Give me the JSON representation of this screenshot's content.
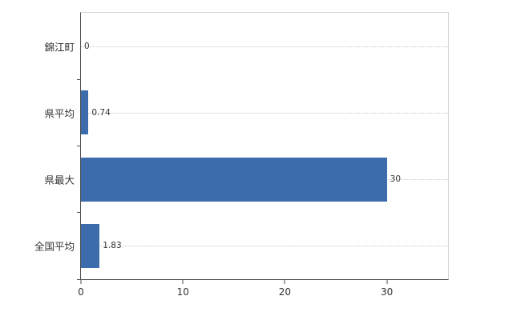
{
  "chart_data": {
    "type": "bar",
    "orientation": "horizontal",
    "title": "",
    "xlabel": "",
    "ylabel": "",
    "categories": [
      "錦江町",
      "県平均",
      "県最大",
      "全国平均"
    ],
    "values": [
      0,
      0.74,
      30,
      1.83
    ],
    "value_labels": [
      "0",
      "0.74",
      "30",
      "1.83"
    ],
    "xlim": [
      0,
      36
    ],
    "xticks": [
      0,
      10,
      20,
      30
    ],
    "bar_color": "#3d6cad",
    "grid": "horizontal-dotted",
    "legend": "none"
  }
}
